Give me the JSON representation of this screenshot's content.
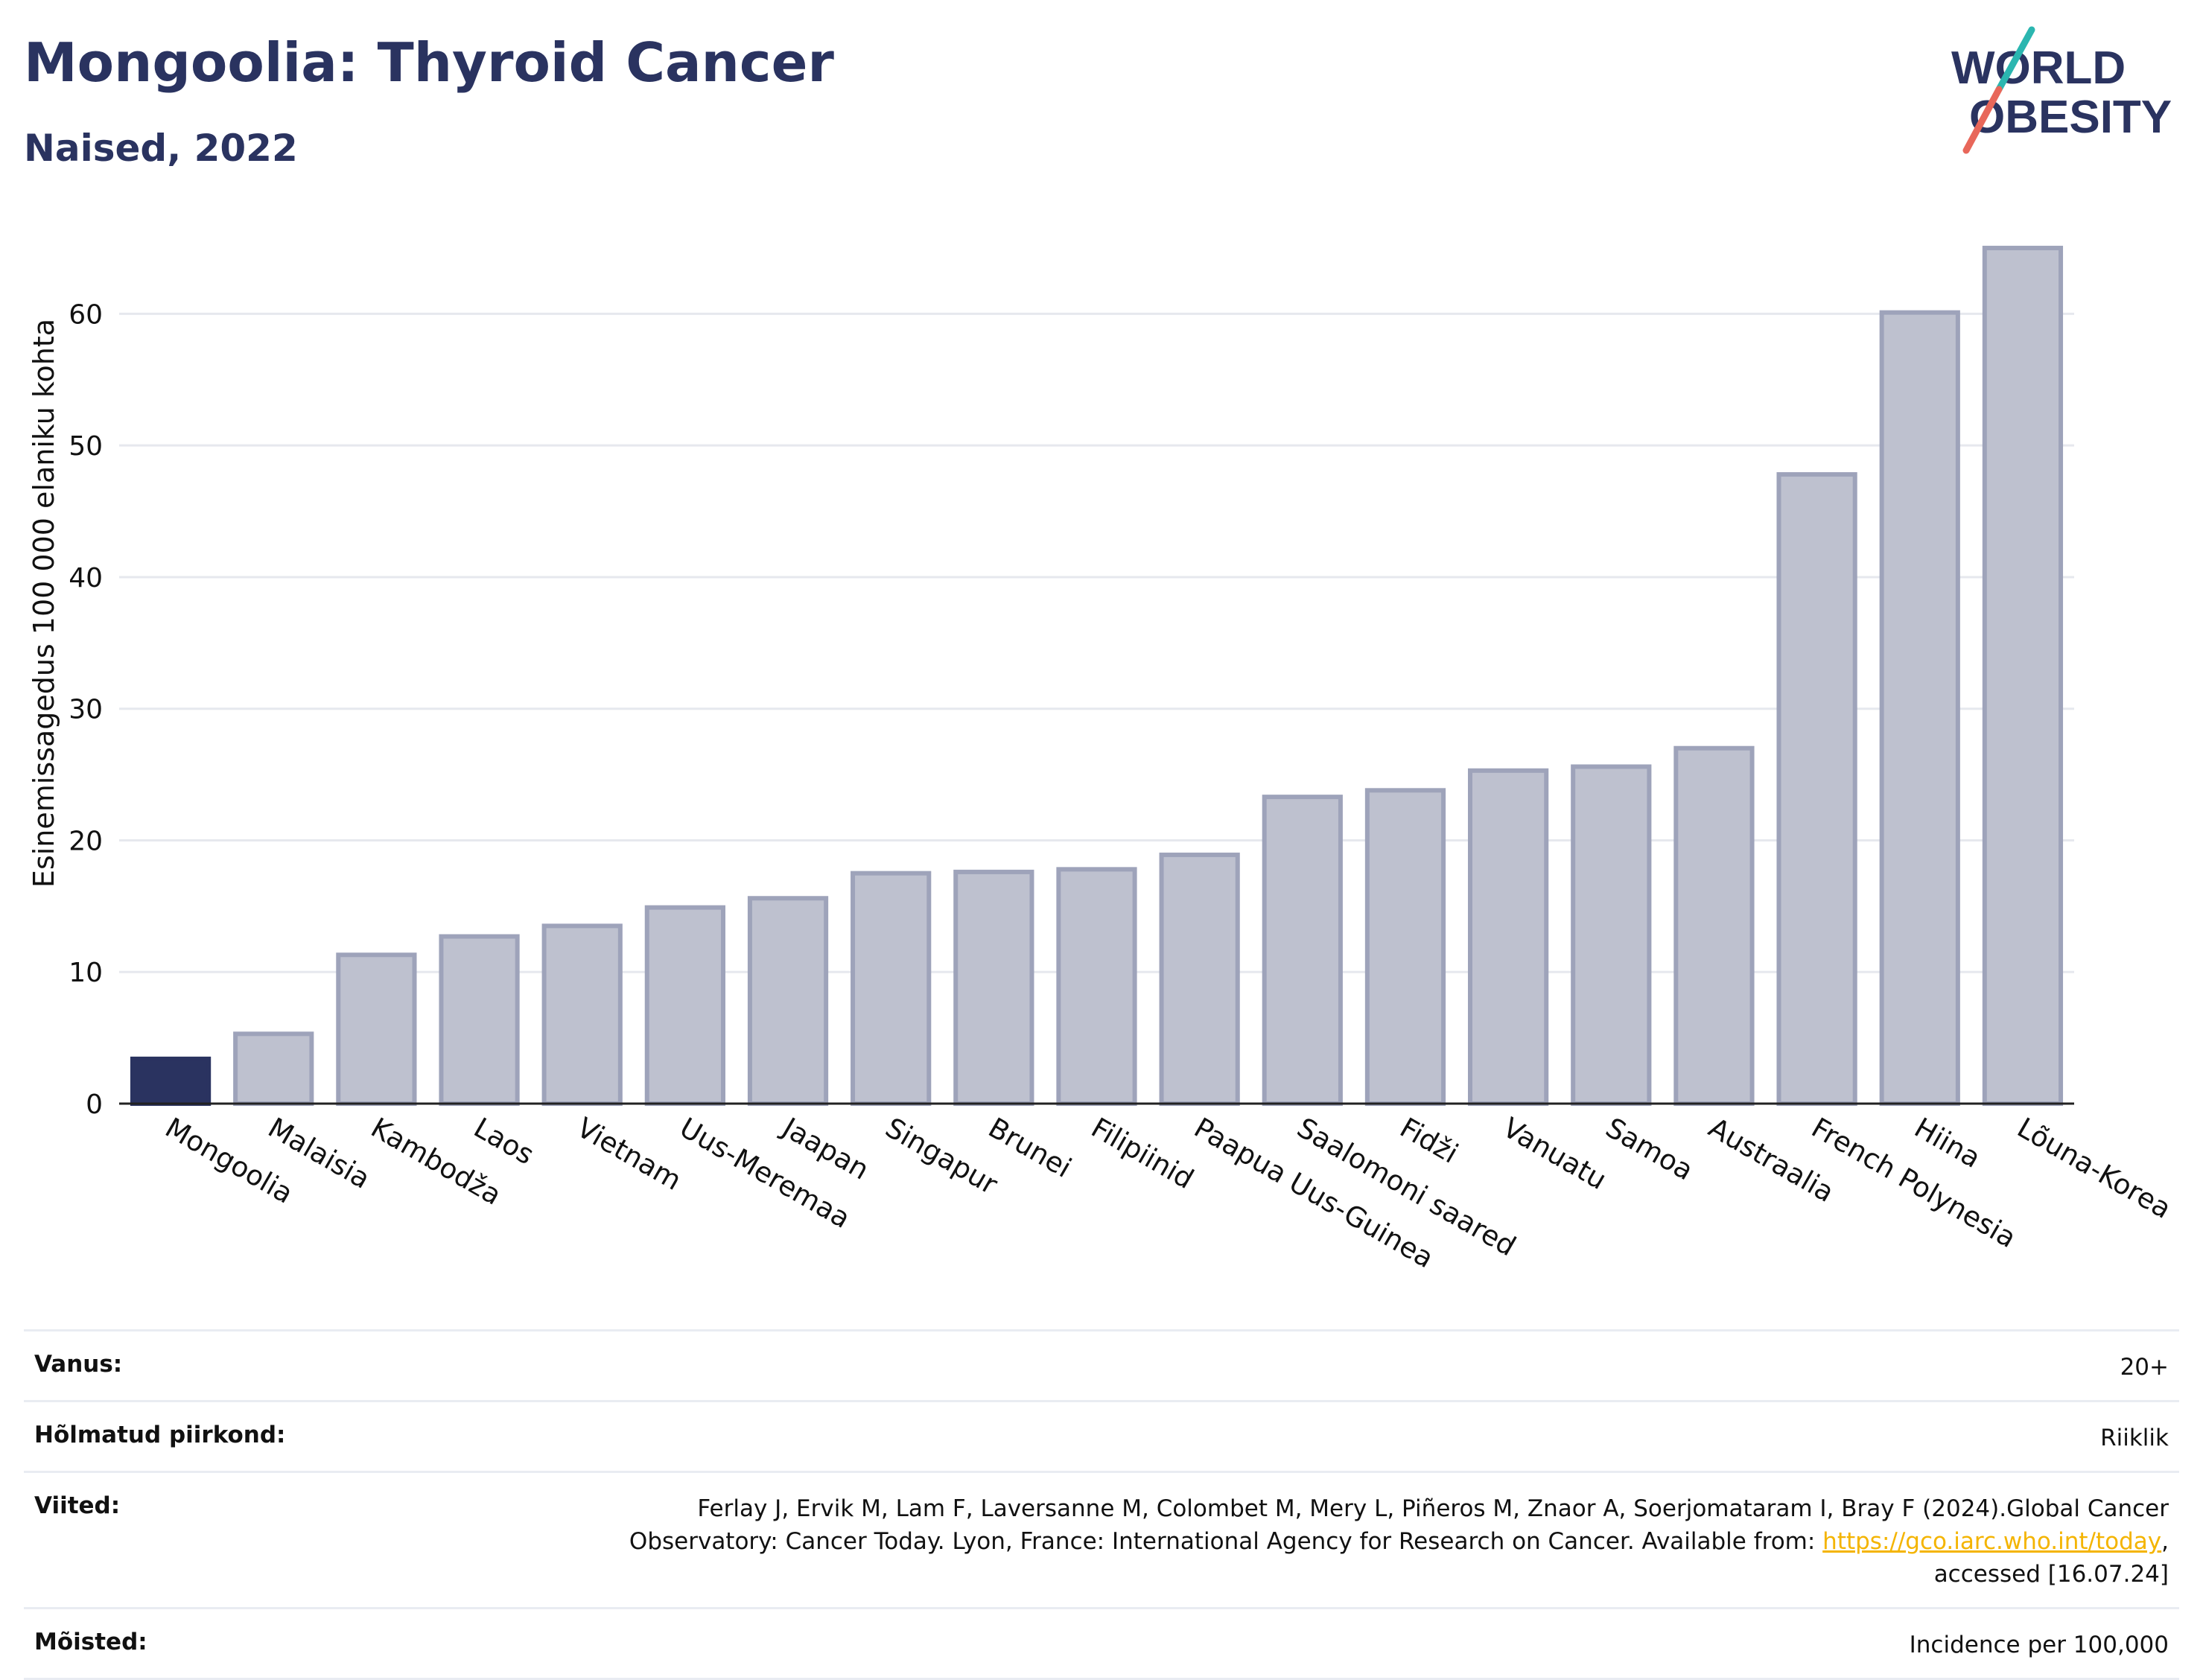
{
  "header": {
    "title": "Mongoolia: Thyroid Cancer",
    "subtitle": "Naised, 2022"
  },
  "logo": {
    "line1": "WORLD",
    "line2": "OBESITY",
    "colors": {
      "text": "#2a3360",
      "slash_top": "#2bb6b0",
      "slash_bottom": "#e8675a"
    }
  },
  "chart_data": {
    "type": "bar",
    "ylabel": "Esinemissagedus 100 000 elaniku kohta",
    "xlabel": "",
    "ylim": [
      0,
      68
    ],
    "yticks": [
      0,
      10,
      20,
      30,
      40,
      50,
      60
    ],
    "grid": true,
    "categories": [
      "Mongoolia",
      "Malaisia",
      "Kambodža",
      "Laos",
      "Vietnam",
      "Uus-Meremaa",
      "Jaapan",
      "Singapur",
      "Brunei",
      "Filipiinid",
      "Paapua Uus-Guinea",
      "Saalomoni saared",
      "Fidži",
      "Vanuatu",
      "Samoa",
      "Austraalia",
      "French Polynesia",
      "Hiina",
      "Lõuna-Korea"
    ],
    "values": [
      3.4,
      5.3,
      11.3,
      12.7,
      13.5,
      14.9,
      15.6,
      17.5,
      17.6,
      17.8,
      18.9,
      23.3,
      23.8,
      25.3,
      25.6,
      27.0,
      47.8,
      60.1,
      65.0
    ],
    "highlight_index": 0,
    "colors": {
      "highlight": "#2a3360",
      "bar_fill": "#bec1cf",
      "bar_stroke": "#9ea3ba",
      "grid": "#e6e8ee",
      "axis": "#222222"
    }
  },
  "meta": {
    "rows": [
      {
        "label": "Vanus:",
        "value": "20+"
      },
      {
        "label": "Hõlmatud piirkond:",
        "value": "Riiklik"
      },
      {
        "label": "Viited:",
        "value_pre": "Ferlay J, Ervik M, Lam F, Laversanne M, Colombet M, Mery L, Piñeros M, Znaor A, Soerjomataram I, Bray F (2024).Global Cancer Observatory: Cancer Today. Lyon, France: International Agency for Research on Cancer. Available from: ",
        "link": "https://gco.iarc.who.int/today",
        "value_post": ", accessed [16.07.24]"
      },
      {
        "label": "Mõisted:",
        "value": "Incidence per 100,000"
      }
    ]
  }
}
